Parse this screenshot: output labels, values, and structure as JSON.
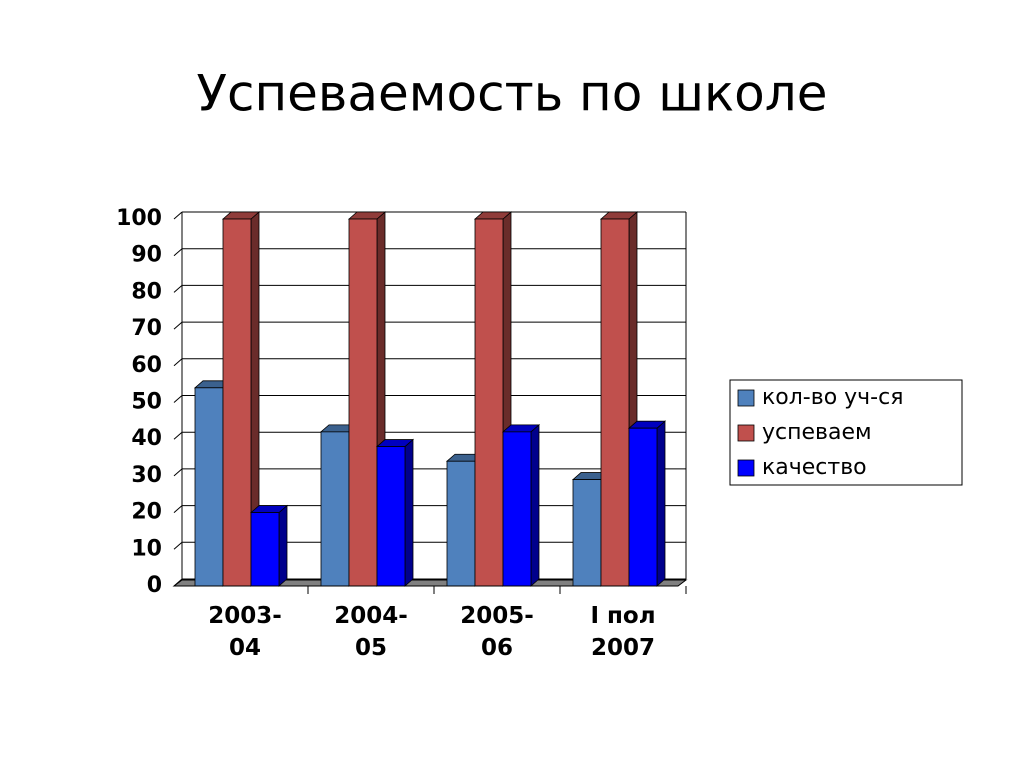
{
  "chart_data": {
    "type": "bar3d",
    "title": "Успеваемость по школе",
    "categories": [
      "2003-04",
      "2004-05",
      "2005-06",
      "I пол 2007"
    ],
    "series": [
      {
        "name": "кол-во уч-ся",
        "color": "#4f81bd",
        "values": [
          54,
          42,
          34,
          29
        ]
      },
      {
        "name": "успеваем",
        "color": "#c0504d",
        "values": [
          100,
          100,
          100,
          100
        ]
      },
      {
        "name": "качество",
        "color": "#0000ff",
        "values": [
          20,
          38,
          42,
          43
        ]
      }
    ],
    "ylim": [
      0,
      100
    ],
    "yticks": [
      0,
      10,
      20,
      30,
      40,
      50,
      60,
      70,
      80,
      90,
      100
    ],
    "grid": true,
    "legend": "right"
  }
}
